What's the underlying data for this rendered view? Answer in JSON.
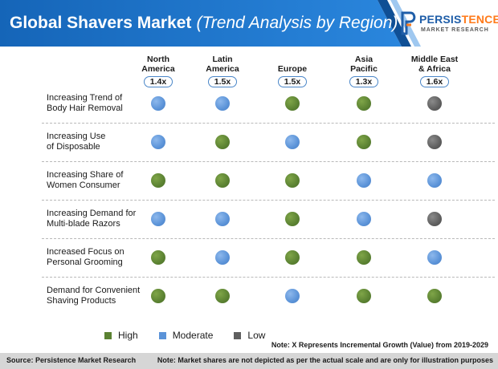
{
  "header": {
    "title": "Global Shavers Market",
    "subtitle": "(Trend Analysis by Region)"
  },
  "logo": {
    "word_a": "PERSIS",
    "word_b": "TENCE",
    "tagline": "MARKET RESEARCH",
    "icon": "persistence-logo-icon"
  },
  "columns": [
    {
      "name": "North\nAmerica",
      "growth": "1.4x"
    },
    {
      "name": "Latin\nAmerica",
      "growth": "1.5x"
    },
    {
      "name": "Europe",
      "growth": "1.5x"
    },
    {
      "name": "Asia\nPacific",
      "growth": "1.3x"
    },
    {
      "name": "Middle East\n& Africa",
      "growth": "1.6x"
    }
  ],
  "rows": [
    {
      "label": "Increasing Trend of\nBody Hair Removal",
      "levels": [
        "moderate",
        "moderate",
        "high",
        "high",
        "low"
      ]
    },
    {
      "label": "Increasing Use\nof Disposable",
      "levels": [
        "moderate",
        "high",
        "moderate",
        "high",
        "low"
      ]
    },
    {
      "label": "Increasing Share of\nWomen Consumer",
      "levels": [
        "high",
        "high",
        "high",
        "moderate",
        "moderate"
      ]
    },
    {
      "label": "Increasing Demand for\nMulti-blade Razors",
      "levels": [
        "moderate",
        "moderate",
        "high",
        "moderate",
        "low"
      ]
    },
    {
      "label": "Increased Focus on\nPersonal Grooming",
      "levels": [
        "high",
        "moderate",
        "high",
        "high",
        "moderate"
      ]
    },
    {
      "label": "Demand for Convenient\nShaving Products",
      "levels": [
        "high",
        "high",
        "moderate",
        "high",
        "high"
      ]
    }
  ],
  "legend": {
    "high": "High",
    "moderate": "Moderate",
    "low": "Low"
  },
  "colors": {
    "high": "#5b8232",
    "moderate": "#5b93d8",
    "low": "#5f5f5f",
    "header_blue": "#1d6fc4",
    "header_dark": "#0f4f95"
  },
  "note": "Note: X Represents Incremental Growth (Value) from 2019-2029",
  "footer": {
    "source": "Source: Persistence Market Research",
    "disclaimer": "Note: Market shares are not depicted as per the actual scale and are only for illustration purposes"
  }
}
